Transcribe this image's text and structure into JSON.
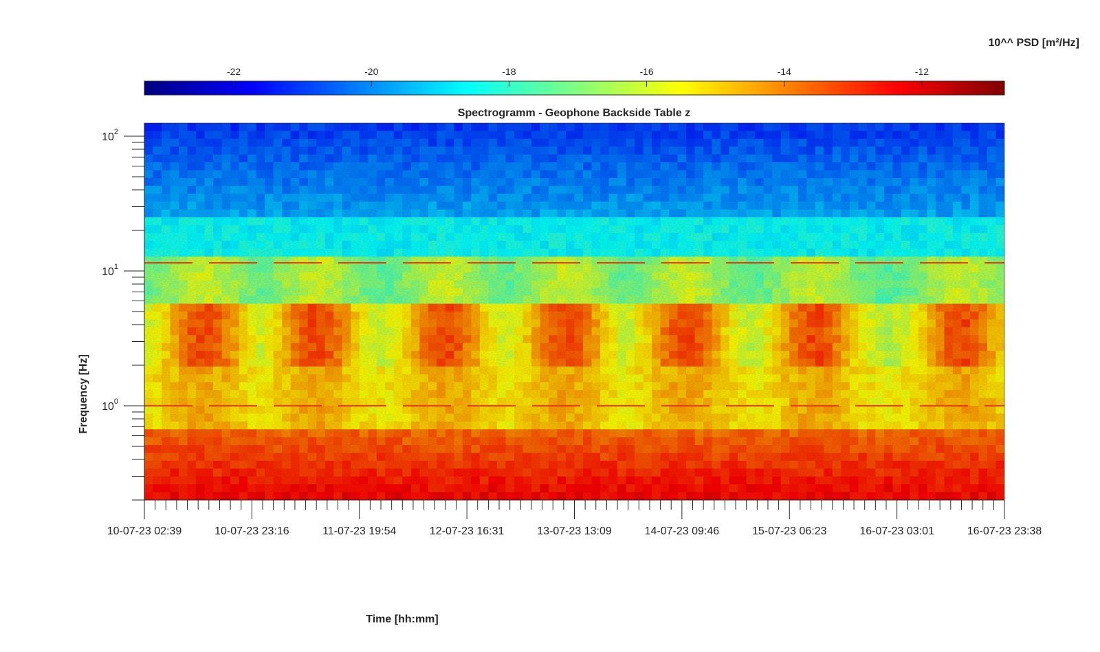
{
  "chart_data": {
    "type": "heatmap",
    "title": "Spectrogramm - Geophone Backside Table z",
    "xlabel": "Time [hh:mm]",
    "ylabel": "Frequency [Hz]",
    "colorbar_label": "10^^ PSD [m²/Hz]",
    "colormap": "jet",
    "colorbar": {
      "placement": "top",
      "range": [
        -23.3,
        -10.8
      ],
      "ticks": [
        -22,
        -20,
        -18,
        -16,
        -14,
        -12
      ],
      "tick_labels": [
        "-22",
        "-20",
        "-18",
        "-16",
        "-14",
        "-12"
      ]
    },
    "x_axis": {
      "range": [
        "10-07-23 02:39",
        "16-07-23 23:38"
      ],
      "ticks": [
        "10-07-23 02:39",
        "10-07-23 23:16",
        "11-07-23 19:54",
        "12-07-23 16:31",
        "13-07-23 13:09",
        "14-07-23 09:46",
        "15-07-23 06:23",
        "16-07-23 03:01",
        "16-07-23 23:38"
      ],
      "minor_ticks_per_major": 10
    },
    "y_axis": {
      "scale": "log",
      "range": [
        0.2,
        125
      ],
      "ticks": [
        1,
        10,
        100
      ],
      "tick_labels": [
        {
          "base": "10",
          "exp": "0"
        },
        {
          "base": "10",
          "exp": "1"
        },
        {
          "base": "10",
          "exp": "2"
        }
      ]
    },
    "grid": false,
    "persistent_lines_hz": [
      1.0,
      11.5
    ],
    "activity_bursts_hz_range": [
      2,
      6
    ],
    "features": {
      "low_freq_band_hz": [
        0.2,
        0.7
      ],
      "high_freq_band_hz": [
        25,
        125
      ]
    }
  }
}
